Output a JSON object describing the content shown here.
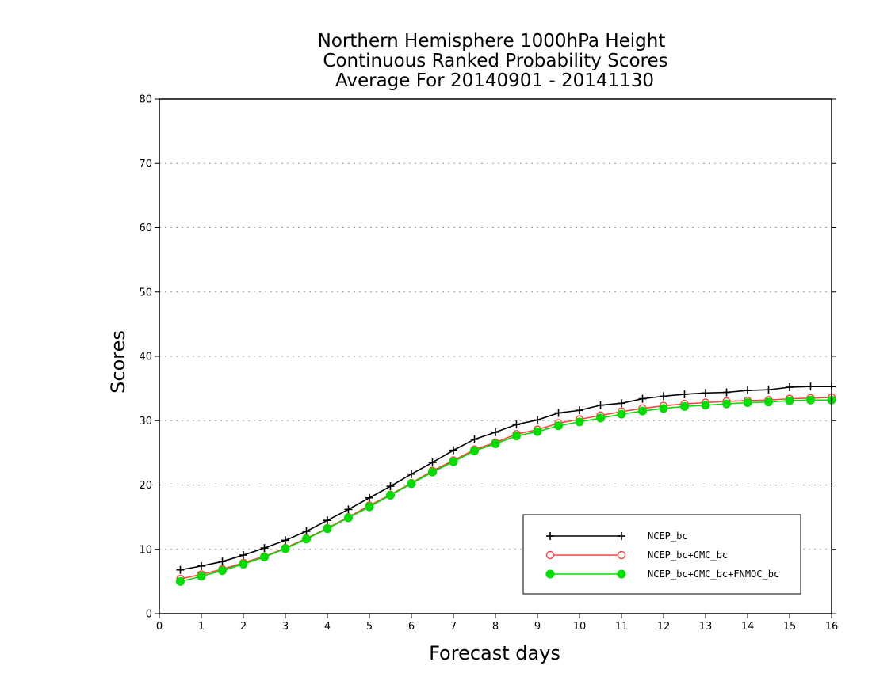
{
  "chart_data": {
    "type": "line",
    "title": [
      "Northern Hemisphere 1000hPa Height",
      "Continuous Ranked Probability Scores",
      "Average For 20140901 - 20141130"
    ],
    "xlabel": "Forecast days",
    "ylabel": "Scores",
    "xlim": [
      0,
      16
    ],
    "ylim": [
      0,
      80
    ],
    "xticks": [
      "0",
      "1",
      "2",
      "3",
      "4",
      "5",
      "6",
      "7",
      "8",
      "9",
      "10",
      "11",
      "12",
      "13",
      "14",
      "15",
      "16"
    ],
    "yticks": [
      "0",
      "10",
      "20",
      "30",
      "40",
      "50",
      "60",
      "70",
      "80"
    ],
    "grid": "horizontal dotted",
    "legend_position": "bottom-right",
    "x": [
      0.5,
      1,
      1.5,
      2,
      2.5,
      3,
      3.5,
      4,
      4.5,
      5,
      5.5,
      6,
      6.5,
      7,
      7.5,
      8,
      8.5,
      9,
      9.5,
      10,
      10.5,
      11,
      11.5,
      12,
      12.5,
      13,
      13.5,
      14,
      14.5,
      15,
      15.5,
      16
    ],
    "series": [
      {
        "name": "NCEP_bc",
        "color": "#000000",
        "marker": "plus",
        "values": [
          6.8,
          7.4,
          8.1,
          9.1,
          10.2,
          11.4,
          12.8,
          14.5,
          16.2,
          18.0,
          19.8,
          21.7,
          23.5,
          25.4,
          27.1,
          28.2,
          29.4,
          30.1,
          31.2,
          31.6,
          32.4,
          32.7,
          33.4,
          33.8,
          34.1,
          34.3,
          34.4,
          34.7,
          34.8,
          35.2,
          35.3,
          35.3
        ]
      },
      {
        "name": "NCEP_bc+CMC_bc",
        "color": "#ff4040",
        "marker": "open-circle",
        "values": [
          5.4,
          6.1,
          6.9,
          7.9,
          8.9,
          10.2,
          11.7,
          13.3,
          15.0,
          16.8,
          18.5,
          20.3,
          22.2,
          23.8,
          25.5,
          26.6,
          27.9,
          28.6,
          29.6,
          30.2,
          30.8,
          31.4,
          31.9,
          32.3,
          32.6,
          32.8,
          33.0,
          33.1,
          33.2,
          33.4,
          33.5,
          33.6
        ]
      },
      {
        "name": "NCEP_bc+CMC_bc+FNMOC_bc",
        "color": "#00dd00",
        "marker": "filled-circle",
        "values": [
          5.0,
          5.8,
          6.7,
          7.7,
          8.8,
          10.1,
          11.6,
          13.2,
          14.9,
          16.6,
          18.4,
          20.2,
          22.0,
          23.6,
          25.3,
          26.4,
          27.6,
          28.3,
          29.2,
          29.8,
          30.4,
          31.0,
          31.5,
          31.9,
          32.2,
          32.4,
          32.6,
          32.8,
          32.9,
          33.1,
          33.2,
          33.2
        ]
      }
    ]
  }
}
